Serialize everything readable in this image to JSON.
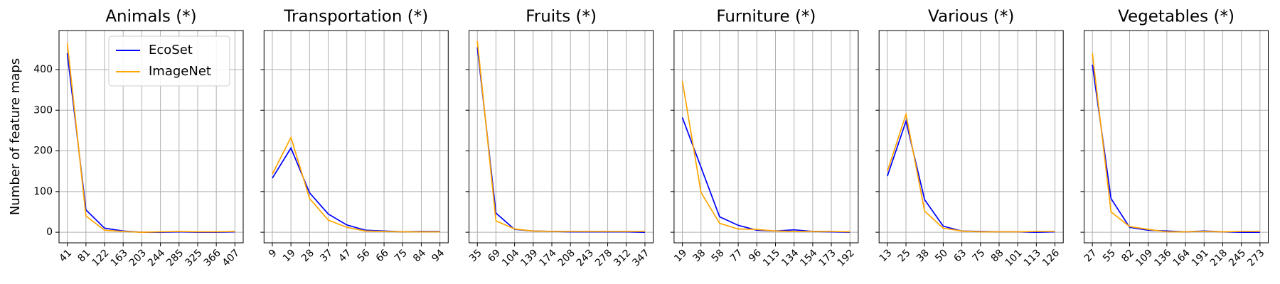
{
  "chart_data": [
    {
      "type": "line",
      "title": "Animals (*)",
      "y_label": "Number of feature maps",
      "legend": "upper center",
      "categories": [
        "41",
        "81",
        "122",
        "163",
        "203",
        "244",
        "285",
        "325",
        "366",
        "407"
      ],
      "series": [
        {
          "name": "EcoSet",
          "color": "#0000ff",
          "values": [
            440,
            55,
            10,
            3,
            0,
            0,
            1,
            0,
            0,
            1
          ]
        },
        {
          "name": "ImageNet",
          "color": "#ffa500",
          "values": [
            465,
            40,
            5,
            2,
            0,
            1,
            2,
            1,
            1,
            2
          ]
        }
      ],
      "ylim": [
        -26,
        496
      ],
      "yticks": [
        0,
        100,
        200,
        300,
        400
      ],
      "grid": true
    },
    {
      "type": "line",
      "title": "Transportation (*)",
      "categories": [
        "9",
        "19",
        "28",
        "37",
        "47",
        "56",
        "66",
        "75",
        "84",
        "94"
      ],
      "series": [
        {
          "name": "EcoSet",
          "color": "#0000ff",
          "values": [
            133,
            207,
            97,
            45,
            18,
            5,
            3,
            1,
            2,
            2
          ]
        },
        {
          "name": "ImageNet",
          "color": "#ffa500",
          "values": [
            143,
            233,
            83,
            30,
            12,
            3,
            2,
            1,
            1,
            1
          ]
        }
      ],
      "ylim": [
        -26,
        496
      ],
      "yticks": [
        0,
        100,
        200,
        300,
        400
      ],
      "grid": true
    },
    {
      "type": "line",
      "title": "Fruits (*)",
      "categories": [
        "35",
        "69",
        "104",
        "139",
        "174",
        "208",
        "243",
        "278",
        "312",
        "347"
      ],
      "series": [
        {
          "name": "EcoSet",
          "color": "#0000ff",
          "values": [
            455,
            47,
            7,
            3,
            2,
            1,
            1,
            1,
            1,
            0
          ]
        },
        {
          "name": "ImageNet",
          "color": "#ffa500",
          "values": [
            470,
            28,
            8,
            3,
            2,
            2,
            2,
            2,
            2,
            2
          ]
        }
      ],
      "ylim": [
        -26,
        496
      ],
      "yticks": [
        0,
        100,
        200,
        300,
        400
      ],
      "grid": true
    },
    {
      "type": "line",
      "title": "Furniture (*)",
      "categories": [
        "19",
        "38",
        "58",
        "77",
        "96",
        "115",
        "134",
        "154",
        "173",
        "192"
      ],
      "series": [
        {
          "name": "EcoSet",
          "color": "#0000ff",
          "values": [
            282,
            160,
            38,
            17,
            5,
            3,
            6,
            2,
            1,
            0
          ]
        },
        {
          "name": "ImageNet",
          "color": "#ffa500",
          "values": [
            372,
            98,
            22,
            8,
            7,
            3,
            2,
            2,
            2,
            1
          ]
        }
      ],
      "ylim": [
        -26,
        496
      ],
      "yticks": [
        0,
        100,
        200,
        300,
        400
      ],
      "grid": true
    },
    {
      "type": "line",
      "title": "Various (*)",
      "categories": [
        "13",
        "25",
        "38",
        "50",
        "63",
        "75",
        "88",
        "101",
        "113",
        "126"
      ],
      "series": [
        {
          "name": "EcoSet",
          "color": "#0000ff",
          "values": [
            138,
            273,
            80,
            15,
            3,
            2,
            1,
            1,
            0,
            1
          ]
        },
        {
          "name": "ImageNet",
          "color": "#ffa500",
          "values": [
            150,
            290,
            52,
            10,
            3,
            1,
            1,
            1,
            2,
            2
          ]
        }
      ],
      "ylim": [
        -26,
        496
      ],
      "yticks": [
        0,
        100,
        200,
        300,
        400
      ],
      "grid": true
    },
    {
      "type": "line",
      "title": "Vegetables (*)",
      "categories": [
        "27",
        "55",
        "82",
        "109",
        "136",
        "164",
        "191",
        "218",
        "245",
        "273"
      ],
      "series": [
        {
          "name": "EcoSet",
          "color": "#0000ff",
          "values": [
            412,
            83,
            12,
            5,
            3,
            1,
            3,
            1,
            0,
            0
          ]
        },
        {
          "name": "ImageNet",
          "color": "#ffa500",
          "values": [
            440,
            50,
            14,
            7,
            1,
            1,
            2,
            1,
            2,
            2
          ]
        }
      ],
      "ylim": [
        -26,
        496
      ],
      "yticks": [
        0,
        100,
        200,
        300,
        400
      ],
      "grid": true
    }
  ]
}
